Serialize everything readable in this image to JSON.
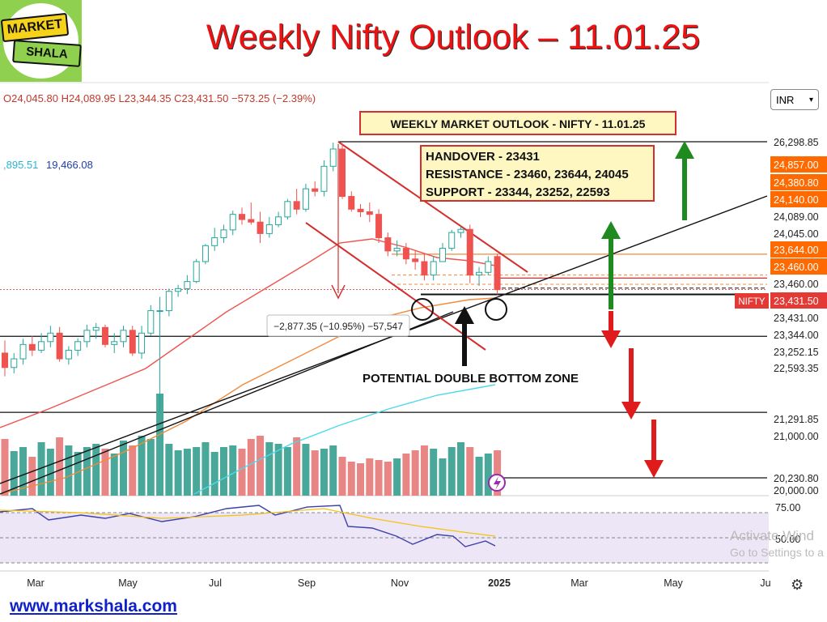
{
  "page": {
    "title": "Weekly Nifty Outlook – 11.01.25",
    "website": "www.markshala.com",
    "logo_line1": "MARKET",
    "logo_line2": "SHALA",
    "currency": "INR",
    "watermark_line1": "Activate Wind",
    "watermark_line2": "Go to Settings to a"
  },
  "ohlc": {
    "open": "O24,045.80",
    "high": "H24,089.95",
    "low": "L23,344.35",
    "close": "C23,431.50",
    "change": "−573.25 (−2.39%)"
  },
  "ma_values": {
    "ma1": ",895.51",
    "ma2": "19,466.08"
  },
  "chart_data": {
    "type": "candlestick",
    "x_ticks": [
      "Mar",
      "May",
      "Jul",
      "Sep",
      "Nov",
      "2025",
      "Mar",
      "May",
      "Ju"
    ],
    "ylim": [
      20000,
      26500
    ],
    "y_scale": "log",
    "price_labels": [
      "26,298.85",
      "24,857.00",
      "24,380.80",
      "24,140.00",
      "24,089.00",
      "24,045.00",
      "23,644.00",
      "23,460.00",
      "23,460.00",
      "23,431.50",
      "23,431.00",
      "23,344.00",
      "23,252.15",
      "22,593.35",
      "21,291.85",
      "21,000.00",
      "20,230.80",
      "20,000.00"
    ],
    "price_label_colors": [
      "#fff",
      "#ff6a00",
      "#ff6a00",
      "#ff6a00",
      "#fff",
      "#fff",
      "#ff6a00",
      "#ff6a00",
      "#fff",
      "#e53935",
      "#fff",
      "#fff",
      "#fff",
      "#fff",
      "#fff",
      "#fff",
      "#fff",
      "#fff"
    ],
    "nifty_tag": "NIFTY",
    "candles": [
      {
        "o": 22300,
        "h": 22520,
        "l": 21900,
        "c": 22050
      },
      {
        "o": 22050,
        "h": 22300,
        "l": 21950,
        "c": 22200
      },
      {
        "o": 22200,
        "h": 22550,
        "l": 22100,
        "c": 22450
      },
      {
        "o": 22450,
        "h": 22600,
        "l": 22250,
        "c": 22350
      },
      {
        "o": 22350,
        "h": 22650,
        "l": 22300,
        "c": 22500
      },
      {
        "o": 22500,
        "h": 22780,
        "l": 22400,
        "c": 22650
      },
      {
        "o": 22650,
        "h": 22760,
        "l": 22150,
        "c": 22200
      },
      {
        "o": 22200,
        "h": 22420,
        "l": 22100,
        "c": 22350
      },
      {
        "o": 22350,
        "h": 22560,
        "l": 22250,
        "c": 22500
      },
      {
        "o": 22500,
        "h": 22800,
        "l": 22400,
        "c": 22700
      },
      {
        "o": 22700,
        "h": 22830,
        "l": 22550,
        "c": 22750
      },
      {
        "o": 22750,
        "h": 22800,
        "l": 22400,
        "c": 22450
      },
      {
        "o": 22450,
        "h": 22650,
        "l": 22300,
        "c": 22500
      },
      {
        "o": 22500,
        "h": 22780,
        "l": 22400,
        "c": 22700
      },
      {
        "o": 22700,
        "h": 22780,
        "l": 22250,
        "c": 22300
      },
      {
        "o": 22300,
        "h": 22780,
        "l": 22200,
        "c": 22650
      },
      {
        "o": 22650,
        "h": 23150,
        "l": 22600,
        "c": 23050
      },
      {
        "o": 23050,
        "h": 23300,
        "l": 21300,
        "c": 23050
      },
      {
        "o": 23050,
        "h": 23450,
        "l": 22950,
        "c": 23400
      },
      {
        "o": 23400,
        "h": 23520,
        "l": 23300,
        "c": 23450
      },
      {
        "o": 23450,
        "h": 23700,
        "l": 23350,
        "c": 23580
      },
      {
        "o": 23580,
        "h": 24000,
        "l": 23550,
        "c": 23950
      },
      {
        "o": 23950,
        "h": 24280,
        "l": 23900,
        "c": 24250
      },
      {
        "o": 24250,
        "h": 24590,
        "l": 24150,
        "c": 24400
      },
      {
        "o": 24400,
        "h": 24650,
        "l": 24300,
        "c": 24550
      },
      {
        "o": 24550,
        "h": 24920,
        "l": 24450,
        "c": 24850
      },
      {
        "o": 24850,
        "h": 24980,
        "l": 24650,
        "c": 24750
      },
      {
        "o": 24750,
        "h": 25080,
        "l": 24650,
        "c": 24700
      },
      {
        "o": 24700,
        "h": 24900,
        "l": 24300,
        "c": 24480
      },
      {
        "o": 24480,
        "h": 24800,
        "l": 24400,
        "c": 24650
      },
      {
        "o": 24650,
        "h": 24900,
        "l": 24600,
        "c": 24800
      },
      {
        "o": 24800,
        "h": 25150,
        "l": 24750,
        "c": 25100
      },
      {
        "o": 25100,
        "h": 25350,
        "l": 24850,
        "c": 24950
      },
      {
        "o": 24950,
        "h": 25450,
        "l": 24900,
        "c": 25350
      },
      {
        "o": 25350,
        "h": 25500,
        "l": 25200,
        "c": 25300
      },
      {
        "o": 25300,
        "h": 25920,
        "l": 25200,
        "c": 25800
      },
      {
        "o": 25800,
        "h": 26280,
        "l": 25700,
        "c": 26150
      },
      {
        "o": 26150,
        "h": 26270,
        "l": 25150,
        "c": 25200
      },
      {
        "o": 25200,
        "h": 25300,
        "l": 24900,
        "c": 24950
      },
      {
        "o": 24950,
        "h": 25050,
        "l": 24800,
        "c": 24900
      },
      {
        "o": 24900,
        "h": 25080,
        "l": 24700,
        "c": 24850
      },
      {
        "o": 24850,
        "h": 24950,
        "l": 24300,
        "c": 24400
      },
      {
        "o": 24400,
        "h": 24500,
        "l": 24050,
        "c": 24150
      },
      {
        "o": 24150,
        "h": 24350,
        "l": 24050,
        "c": 24200
      },
      {
        "o": 24200,
        "h": 24300,
        "l": 23900,
        "c": 24000
      },
      {
        "o": 24000,
        "h": 24150,
        "l": 23800,
        "c": 23950
      },
      {
        "o": 23950,
        "h": 24100,
        "l": 23600,
        "c": 23700
      },
      {
        "o": 23700,
        "h": 24050,
        "l": 23600,
        "c": 23950
      },
      {
        "o": 23950,
        "h": 24300,
        "l": 23950,
        "c": 24200
      },
      {
        "o": 24200,
        "h": 24550,
        "l": 24150,
        "c": 24500
      },
      {
        "o": 24500,
        "h": 24620,
        "l": 24400,
        "c": 24560
      },
      {
        "o": 24560,
        "h": 24650,
        "l": 23550,
        "c": 23700
      },
      {
        "o": 23700,
        "h": 23850,
        "l": 23500,
        "c": 23750
      },
      {
        "o": 23750,
        "h": 24050,
        "l": 23700,
        "c": 23950
      },
      {
        "o": 24045,
        "h": 24090,
        "l": 23344,
        "c": 23431
      }
    ],
    "annotations": {
      "outlook_box": "WEEKLY MARKET OUTLOOK - NIFTY - 11.01.25",
      "handover": "HANDOVER - 23431",
      "resistance": "RESISTANCE - 23460, 23644, 24045",
      "support": "SUPPORT - 23344, 23252, 22593",
      "double_bottom": "POTENTIAL DOUBLE BOTTOM ZONE",
      "measure": "−2,877.35 (−10.95%) −57,547"
    },
    "rsi_levels": [
      "75.00",
      "50.00"
    ],
    "colors": {
      "up": "#26a69a",
      "down": "#ef5350",
      "ema_fast": "#ef5350",
      "ema_slow": "#f08a3c",
      "ma_long": "#4dd9ec",
      "rsi": "#3f3fa8",
      "rsi_ma": "#f4c20d"
    }
  }
}
